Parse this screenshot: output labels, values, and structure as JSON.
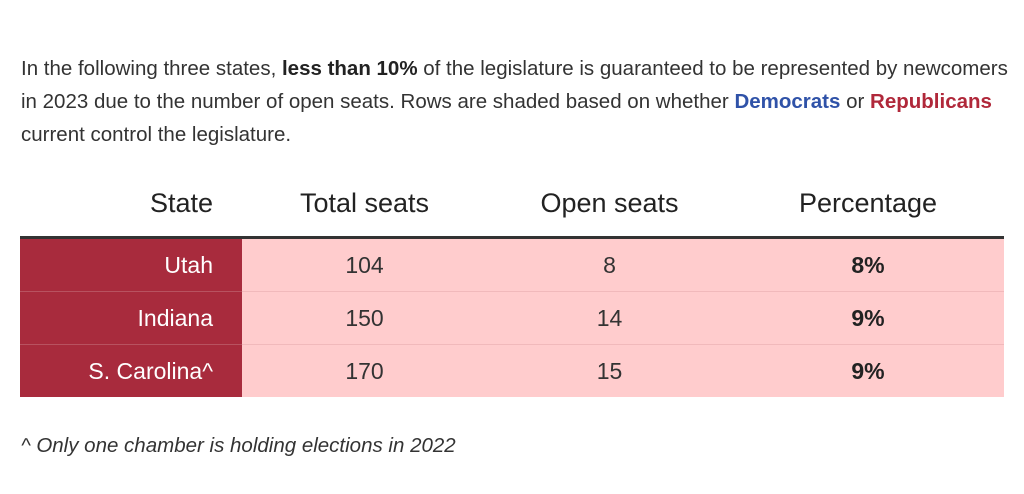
{
  "intro": {
    "part1": "In the following three states, ",
    "bold": "less than 10%",
    "part2": " of the legislature is guaranteed to be represented by newcomers in 2023 due to the number of open seats. Rows are shaded based on whether ",
    "dem_label": "Democrats",
    "part3": " or ",
    "rep_label": "Republicans",
    "part4": " current control the legislature."
  },
  "colors": {
    "democrat": "#2f52a8",
    "republican": "#b0283a",
    "rep_state_cell": "#a82b3d",
    "rep_row_fill": "#ffcccd"
  },
  "table": {
    "headers": {
      "state": "State",
      "total": "Total seats",
      "open": "Open seats",
      "pct": "Percentage"
    },
    "rows": [
      {
        "state": "Utah",
        "total": "104",
        "open": "8",
        "pct": "8%",
        "party": "Republican"
      },
      {
        "state": "Indiana",
        "total": "150",
        "open": "14",
        "pct": "9%",
        "party": "Republican"
      },
      {
        "state": "S. Carolina^",
        "total": "170",
        "open": "15",
        "pct": "9%",
        "party": "Republican"
      }
    ]
  },
  "footnote": "^ Only one chamber is holding elections in 2022"
}
